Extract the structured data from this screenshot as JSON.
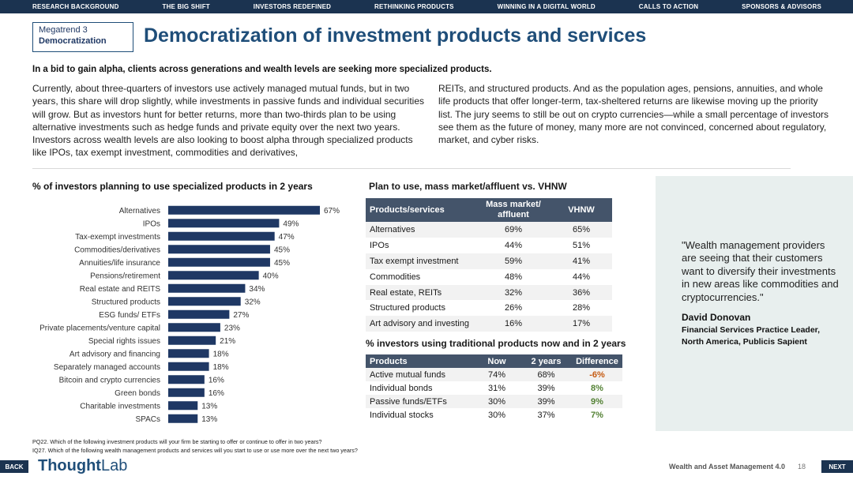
{
  "nav": [
    "RESEARCH BACKGROUND",
    "THE BIG SHIFT",
    "INVESTORS REDEFINED",
    "RETHINKING PRODUCTS",
    "WINNING IN A DIGITAL WORLD",
    "CALLS TO ACTION",
    "SPONSORS & ADVISORS"
  ],
  "megatrend": {
    "line1": "Megatrend 3",
    "line2": "Democratization"
  },
  "title": "Democratization of investment products and services",
  "lead": "In a bid to gain alpha, clients across generations and wealth levels are seeking more specialized products.",
  "body_left": "Currently, about three-quarters of investors use actively managed mutual funds, but in two years, this share will drop slightly, while investments in passive funds and individual securities will grow. But as investors hunt for better returns, more than two-thirds plan to be using alternative investments such as hedge funds and private equity over the next two years. Investors across wealth levels are also looking to boost alpha through specialized products like IPOs, tax exempt investment, commodities and derivatives,",
  "body_right": "REITs, and structured products. And as the population ages, pensions, annuities, and whole life products that offer longer-term, tax-sheltered returns are likewise moving up the priority list. The jury seems to still be out on crypto currencies—while a small percentage of investors see them as the future of money, many more are not convinced, concerned about regulatory, market, and cyber risks.",
  "chart_data": {
    "type": "bar",
    "orientation": "horizontal",
    "title": "% of investors planning to use specialized products in 2 years",
    "categories": [
      "Alternatives",
      "IPOs",
      "Tax-exempt investments",
      "Commodities/derivatives",
      "Annuities/life insurance",
      "Pensions/retirement",
      "Real estate and REITS",
      "Structured products",
      "ESG funds/ ETFs",
      "Private placements/venture capital",
      "Special rights issues",
      "Art advisory and financing",
      "Separately managed accounts",
      "Bitcoin and crypto currencies",
      "Green bonds",
      "Charitable investments",
      "SPACs"
    ],
    "values": [
      67,
      49,
      47,
      45,
      45,
      40,
      34,
      32,
      27,
      23,
      21,
      18,
      18,
      16,
      16,
      13,
      13
    ],
    "labels": [
      "67%",
      "49%",
      "47%",
      "45%",
      "45%",
      "40%",
      "34%",
      "32%",
      "27%",
      "23%",
      "21%",
      "18%",
      "18%",
      "16%",
      "16%",
      "13%",
      "13%"
    ],
    "xlim": [
      0,
      67
    ],
    "bar_color": "#1f3864"
  },
  "table1": {
    "title": "Plan to use, mass market/affluent vs. VHNW",
    "headers": [
      "Products/services",
      "Mass market/ affluent",
      "VHNW"
    ],
    "rows": [
      [
        "Alternatives",
        "69%",
        "65%"
      ],
      [
        "IPOs",
        "44%",
        "51%"
      ],
      [
        "Tax exempt investment",
        "59%",
        "41%"
      ],
      [
        "Commodities",
        "48%",
        "44%"
      ],
      [
        "Real estate, REITs",
        "32%",
        "36%"
      ],
      [
        "Structured products",
        "26%",
        "28%"
      ],
      [
        "Art advisory and investing",
        "16%",
        "17%"
      ]
    ]
  },
  "table2": {
    "title": "% investors using traditional products now and in 2 years",
    "headers": [
      "Products",
      "Now",
      "2 years",
      "Difference"
    ],
    "rows": [
      [
        "Active mutual funds",
        "74%",
        "68%",
        "-6%"
      ],
      [
        "Individual bonds",
        "31%",
        "39%",
        "8%"
      ],
      [
        "Passive funds/ETFs",
        "30%",
        "39%",
        "9%"
      ],
      [
        "Individual stocks",
        "30%",
        "37%",
        "7%"
      ]
    ],
    "negative_color": "#c55a11",
    "positive_color": "#548235"
  },
  "quote": {
    "text": "\"Wealth management providers are seeing that their customers want to diversify their investments in new areas like commodities and cryptocurrencies.\"",
    "author": "David Donovan",
    "role": "Financial Services Practice Leader, North America, Publicis Sapient"
  },
  "footnotes": [
    "PQ22.  Which of the following investment products will your firm be starting to offer or continue to offer in two years?",
    "IQ27.  Which of the following wealth management products and services will you start to use or use more over the next two years?"
  ],
  "footer": {
    "back": "BACK",
    "next": "NEXT",
    "logo_bold": "Thought",
    "logo_light": "Lab",
    "publication": "Wealth and Asset Management 4.0",
    "page": "18"
  }
}
